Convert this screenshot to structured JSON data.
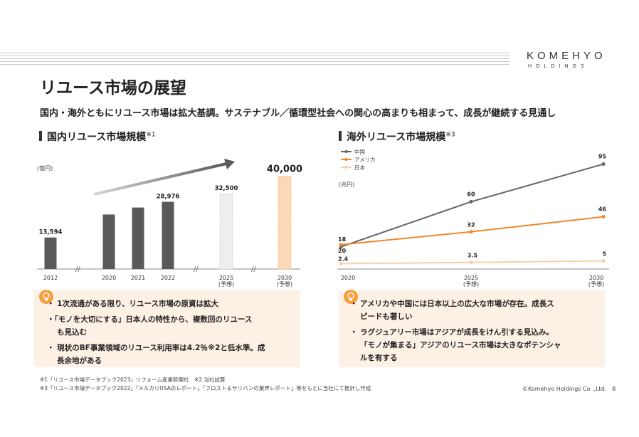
{
  "logo": {
    "main": "KOMEHYO",
    "sub": "HOLDINGS"
  },
  "title": "リユース市場の展望",
  "subtitle": "国内・海外ともにリユース市場は拡大基調。サステナブル／循環型社会への関心の高まりも相まって、成長が継続する見通し",
  "left": {
    "heading": "国内リユース市場規模",
    "heading_note": "※1",
    "unit": "(億円)",
    "bullets": [
      "・ 1次流通がある限り、リユース市場の原資は拡大",
      "・「モノを大切にする」日本人の特性から、複数回のリユース",
      "も見込む",
      "・ 現状のBF事業領域のリユース利用率は4.2％※2と低水準。成",
      "長余地がある"
    ]
  },
  "right": {
    "heading": "海外リユース市場規模",
    "heading_note": "※3",
    "unit": "(兆円)",
    "bullets": [
      "・ アメリカや中国には日本以上の広大な市場が存在。成長ス",
      "ピードも著しい",
      "・ ラグジュアリー市場はアジアが成長をけん引する見込み。",
      "「モノが集まる」アジアのリユース市場は大きなポテンシャ",
      "ルを有する"
    ]
  },
  "footnotes": [
    "※1「リユース市場データブック2023」リフォーム産業新聞社　※2 当社試算",
    "※3「リユース市場データブック2022」「メルカリUSAのレポート」「フロスト＆サリバンの業界レポート」等をもとに当社にて推計し作成"
  ],
  "copyright": "©Komehyo Holdings Co .,Ltd.",
  "page_number": "8",
  "chart_data": [
    {
      "type": "bar",
      "categories": [
        "2012",
        "2020",
        "2021",
        "2022",
        "2025\n(予想)",
        "2030\n(予想)"
      ],
      "values": [
        13594,
        null,
        null,
        28976,
        32500,
        40000
      ],
      "value_labels": [
        "13,594",
        "",
        "",
        "28,976",
        "32,500",
        "40,000"
      ],
      "ylabel": "(億円)",
      "colors": {
        "actual": "#595959",
        "forecast_2025": "#eeeeee",
        "forecast_2030": "#fcd9b6"
      }
    },
    {
      "type": "line",
      "x": [
        "2020",
        "2025\n(予想)",
        "2030\n(予想)"
      ],
      "series": [
        {
          "name": "中国",
          "values": [
            18,
            60,
            95
          ],
          "color": "#666666"
        },
        {
          "name": "アメリカ",
          "values": [
            20,
            32,
            46
          ],
          "color": "#ee8a2f"
        },
        {
          "name": "日本",
          "values": [
            2.4,
            3.5,
            5
          ],
          "color": "#f6d0a8"
        }
      ],
      "ylabel": "(兆円)",
      "ylim": [
        0,
        100
      ]
    }
  ]
}
